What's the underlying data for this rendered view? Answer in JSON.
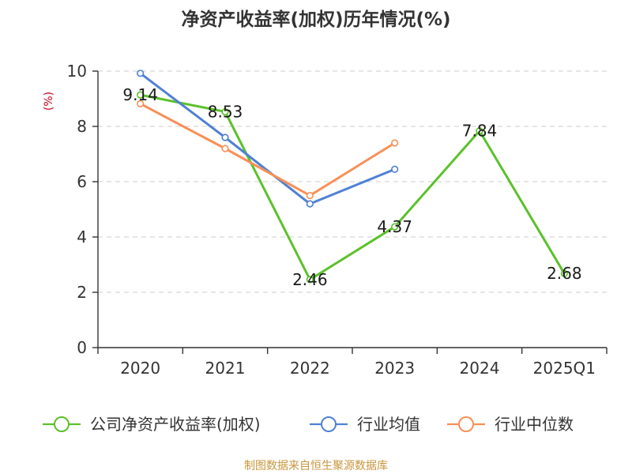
{
  "chart_data": {
    "type": "line",
    "title": "净资产收益率(加权)历年情况(%)",
    "ylabel": "(%)",
    "xlabel": "",
    "categories": [
      "2020",
      "2021",
      "2022",
      "2023",
      "2024",
      "2025Q1"
    ],
    "ylim": [
      0,
      10
    ],
    "yticks": [
      0,
      2,
      4,
      6,
      8,
      10
    ],
    "grid": true,
    "legend_position": "bottom",
    "series": [
      {
        "name": "公司净资产收益率(加权)",
        "color": "#5bc12b",
        "values": [
          9.14,
          8.53,
          2.46,
          4.37,
          7.84,
          2.68
        ],
        "labels": [
          "9.14",
          "8.53",
          "2.46",
          "4.37",
          "7.84",
          "2.68"
        ]
      },
      {
        "name": "行业均值",
        "color": "#4f81d4",
        "values": [
          9.92,
          7.6,
          5.2,
          6.45,
          null,
          null
        ]
      },
      {
        "name": "行业中位数",
        "color": "#f79056",
        "values": [
          8.82,
          7.2,
          5.5,
          7.4,
          null,
          null
        ]
      }
    ]
  },
  "source": "制图数据来自恒生聚源数据库"
}
